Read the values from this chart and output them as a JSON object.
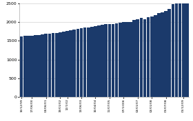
{
  "bar_color": "#1b3a6b",
  "background_color": "#ffffff",
  "ylim": [
    0,
    2500
  ],
  "yticks": [
    0,
    500,
    1000,
    1500,
    2000,
    2500
  ],
  "grid_color": "#d0d0d0",
  "values": [
    1620,
    1635,
    1635,
    1640,
    1655,
    1665,
    1680,
    1690,
    1700,
    1710,
    1720,
    1730,
    1745,
    1760,
    1785,
    1800,
    1830,
    1850,
    1860,
    1855,
    1870,
    1890,
    1920,
    1940,
    1950,
    1955,
    1955,
    1965,
    1980,
    2005,
    2010,
    2010,
    2055,
    2090,
    2120,
    2090,
    2140,
    2160,
    2200,
    2240,
    2270,
    2310,
    2360,
    2480,
    2550,
    2610,
    2650,
    2660
  ],
  "x_tick_labels": [
    "10/12/99",
    "17/06/00",
    "04/06/01",
    "19/01/02",
    "12/1/02",
    "13/06/03",
    "10/04/04",
    "11/07/05",
    "07/1/006",
    "02/01/07",
    "02/01/08",
    "01/07/08",
    "01/12/09"
  ],
  "x_tick_positions": [
    0,
    3,
    7,
    11,
    13,
    17,
    21,
    25,
    29,
    33,
    37,
    41,
    46
  ],
  "ylabel_fontsize": 4.5,
  "xlabel_fontsize": 3.2
}
